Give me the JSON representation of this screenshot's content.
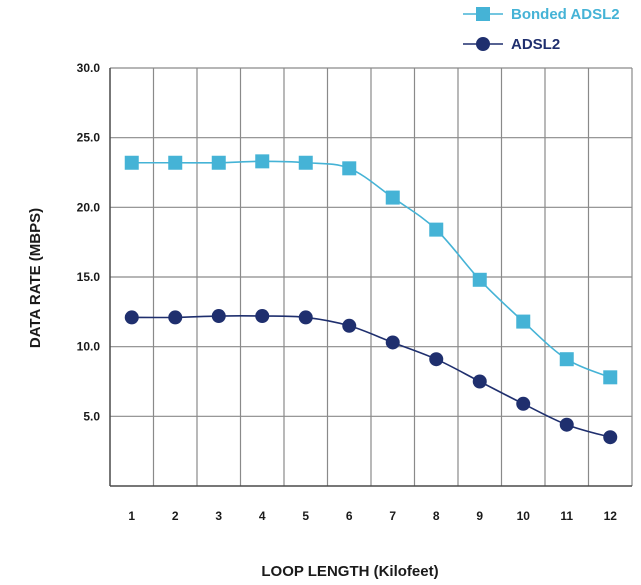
{
  "chart_data": {
    "type": "line",
    "title": "",
    "xlabel": "LOOP LENGTH (Kilofeet)",
    "ylabel": "DATA RATE (MBPS)",
    "x": [
      1,
      2,
      3,
      4,
      5,
      6,
      7,
      8,
      9,
      10,
      11,
      12
    ],
    "x_tick_labels": [
      "1",
      "2",
      "3",
      "4",
      "5",
      "6",
      "7",
      "8",
      "9",
      "10",
      "11",
      "12"
    ],
    "y_tick_labels": [
      "5.0",
      "10.0",
      "15.0",
      "20.0",
      "25.0",
      "30.0"
    ],
    "y_ticks": [
      5,
      10,
      15,
      20,
      25,
      30
    ],
    "ylim": [
      0,
      30
    ],
    "grid": true,
    "legend_position": "top-right",
    "series": [
      {
        "name": "Bonded ADSL2",
        "color": "#45b3d6",
        "marker": "square",
        "values": [
          23.2,
          23.2,
          23.2,
          23.3,
          23.2,
          22.8,
          20.7,
          18.4,
          14.8,
          11.8,
          9.1,
          7.8
        ]
      },
      {
        "name": "ADSL2",
        "color": "#1f2f6e",
        "marker": "circle",
        "values": [
          12.1,
          12.1,
          12.2,
          12.2,
          12.1,
          11.5,
          10.3,
          9.1,
          7.5,
          5.9,
          4.4,
          3.5
        ]
      }
    ]
  }
}
